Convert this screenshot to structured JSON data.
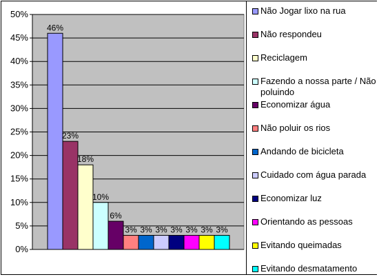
{
  "chart_data": {
    "type": "bar",
    "title": "",
    "xlabel": "",
    "ylabel": "",
    "ylim": [
      0,
      50
    ],
    "y_ticks": [
      "0%",
      "5%",
      "10%",
      "15%",
      "20%",
      "25%",
      "30%",
      "35%",
      "40%",
      "45%",
      "50%"
    ],
    "grid": true,
    "legend_position": "right",
    "plot_background": "#c0c0c0",
    "series": [
      {
        "name": "Não Jogar lixo na rua",
        "value": 46,
        "label": "46%",
        "color": "#9999ff"
      },
      {
        "name": "Não respondeu",
        "value": 23,
        "label": "23%",
        "color": "#993366"
      },
      {
        "name": "Reciclagem",
        "value": 18,
        "label": "18%",
        "color": "#ffffcc"
      },
      {
        "name": "Fazendo a nossa parte / Não poluindo",
        "value": 10,
        "label": "10%",
        "color": "#ccffff"
      },
      {
        "name": "Economizar água",
        "value": 6,
        "label": "6%",
        "color": "#660066"
      },
      {
        "name": "Não poluir os rios",
        "value": 3,
        "label": "3%",
        "color": "#ff8080"
      },
      {
        "name": "Andando de bicicleta",
        "value": 3,
        "label": "3%",
        "color": "#0066cc"
      },
      {
        "name": "Cuidado com água parada",
        "value": 3,
        "label": "3%",
        "color": "#ccccff"
      },
      {
        "name": "Economizar luz",
        "value": 3,
        "label": "3%",
        "color": "#000080"
      },
      {
        "name": "Orientando as pessoas",
        "value": 3,
        "label": "3%",
        "color": "#ff00ff"
      },
      {
        "name": "Evitando queimadas",
        "value": 3,
        "label": "3%",
        "color": "#ffff00"
      },
      {
        "name": "Evitando desmatamento",
        "value": 3,
        "label": "3%",
        "color": "#00ffff"
      }
    ]
  }
}
